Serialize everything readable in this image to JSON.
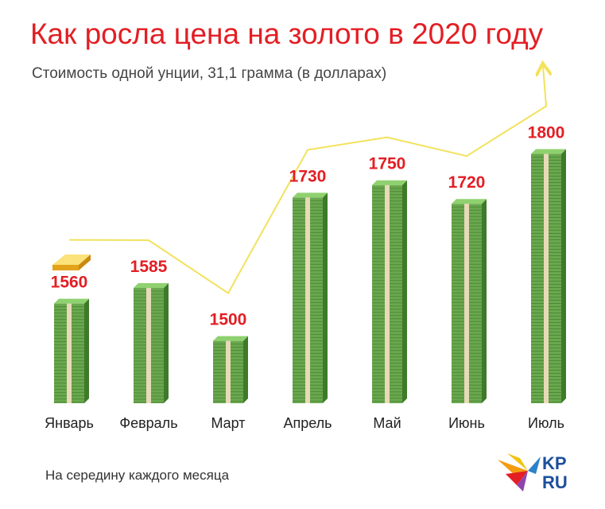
{
  "title": "Как росла цена на золото в 2020 году",
  "subtitle": "Стоимость одной унции, 31,1 грамма (в долларах)",
  "footnote": "На середину каждого месяца",
  "logo": {
    "line1": "KP",
    "line2": "RU"
  },
  "colors": {
    "accent": "#e31e24",
    "bar_green": "#6aa84f",
    "bar_dark": "#3f7a2a",
    "band": "#e8d9b8",
    "trend_line": "#f2e25c",
    "gold": "#f6c12a"
  },
  "chart_data": {
    "type": "bar",
    "title": "Как росла цена на золото в 2020 году",
    "subtitle": "Стоимость одной унции, 31,1 грамма (в долларах)",
    "xlabel": "",
    "ylabel": "",
    "categories": [
      "Январь",
      "Февраль",
      "Март",
      "Апрель",
      "Май",
      "Июнь",
      "Июль"
    ],
    "values": [
      1560,
      1585,
      1500,
      1730,
      1750,
      1720,
      1800
    ],
    "ylim": [
      1400,
      1830
    ],
    "overlay": {
      "type": "line",
      "trend": "up-arrow"
    }
  }
}
